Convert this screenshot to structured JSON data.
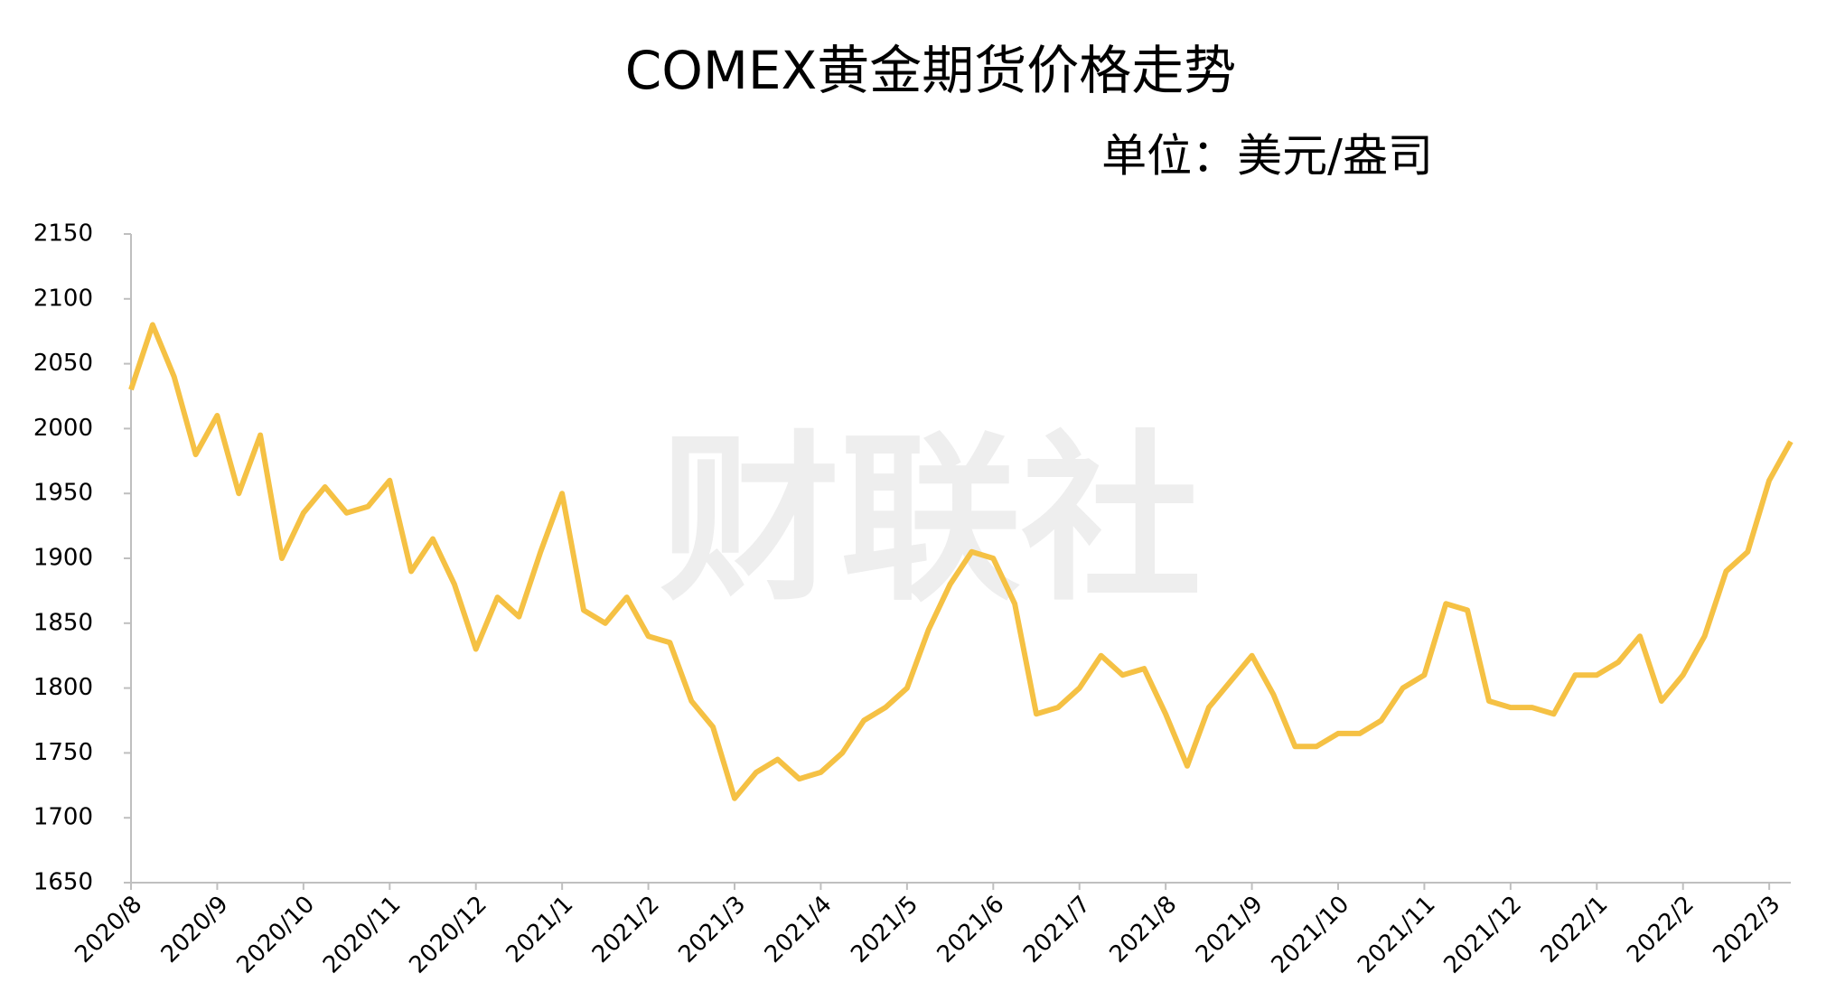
{
  "chart_data": {
    "type": "line",
    "title": "COMEX黄金期货价格走势",
    "subtitle": "单位：美元/盎司",
    "watermark": "财联社",
    "categories": [
      "2020/8",
      null,
      null,
      null,
      "2020/9",
      null,
      null,
      null,
      "2020/10",
      null,
      null,
      null,
      "2020/11",
      null,
      null,
      null,
      "2020/12",
      null,
      null,
      null,
      "2021/1",
      null,
      null,
      null,
      "2021/2",
      null,
      null,
      null,
      "2021/3",
      null,
      null,
      null,
      "2021/4",
      null,
      null,
      null,
      "2021/5",
      null,
      null,
      null,
      "2021/6",
      null,
      null,
      null,
      "2021/7",
      null,
      null,
      null,
      "2021/8",
      null,
      null,
      null,
      "2021/9",
      null,
      null,
      null,
      "2021/10",
      null,
      null,
      null,
      "2021/11",
      null,
      null,
      null,
      "2021/12",
      null,
      null,
      null,
      "2022/1",
      null,
      null,
      null,
      "2022/2",
      null,
      null,
      null,
      "2022/3",
      null
    ],
    "values": [
      2030,
      2080,
      2040,
      1980,
      2010,
      1950,
      1995,
      1900,
      1935,
      1955,
      1935,
      1940,
      1960,
      1890,
      1915,
      1880,
      1830,
      1870,
      1855,
      1905,
      1950,
      1860,
      1850,
      1870,
      1840,
      1835,
      1790,
      1770,
      1715,
      1735,
      1745,
      1730,
      1735,
      1750,
      1775,
      1785,
      1800,
      1845,
      1880,
      1905,
      1900,
      1865,
      1780,
      1785,
      1800,
      1825,
      1810,
      1815,
      1780,
      1740,
      1785,
      1805,
      1825,
      1795,
      1755,
      1755,
      1765,
      1765,
      1775,
      1800,
      1810,
      1865,
      1860,
      1790,
      1785,
      1785,
      1780,
      1810,
      1810,
      1820,
      1840,
      1790,
      1810,
      1840,
      1890,
      1905,
      1960,
      1990
    ],
    "color": "#f5c144",
    "ylim": [
      1650,
      2150
    ],
    "yticks": [
      1650,
      1700,
      1750,
      1800,
      1850,
      1900,
      1950,
      2000,
      2050,
      2100,
      2150
    ],
    "grid": false
  }
}
